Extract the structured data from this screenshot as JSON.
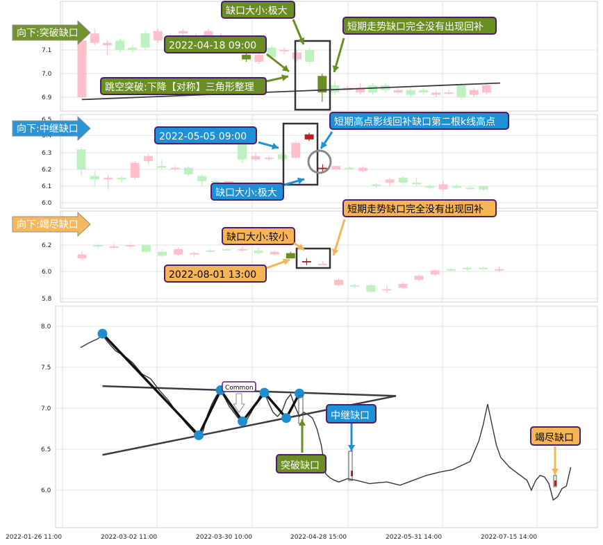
{
  "chart_data": [
    {
      "type": "candlestick",
      "panel": "gap-breakaway",
      "tag": "向下:突破缺口",
      "ylim": [
        6.85,
        7.25
      ],
      "yticks": [
        "7.1",
        "7.0",
        "6.9"
      ],
      "candles": [
        {
          "o": 7.14,
          "c": 6.9,
          "h": 7.18,
          "l": 6.89,
          "up": false
        },
        {
          "o": 7.17,
          "c": 7.13,
          "h": 7.19,
          "l": 7.12,
          "up": false
        },
        {
          "o": 7.13,
          "c": 7.12,
          "h": 7.14,
          "l": 7.08,
          "up": false
        },
        {
          "o": 7.1,
          "c": 7.14,
          "h": 7.15,
          "l": 7.09,
          "up": true
        },
        {
          "o": 7.11,
          "c": 7.1,
          "h": 7.12,
          "l": 7.09,
          "up": true
        },
        {
          "o": 7.11,
          "c": 7.17,
          "h": 7.18,
          "l": 7.1,
          "up": true
        },
        {
          "o": 7.18,
          "c": 7.14,
          "h": 7.19,
          "l": 7.13,
          "up": false
        },
        {
          "o": 7.16,
          "c": 7.15,
          "h": 7.17,
          "l": 7.14,
          "up": true
        },
        {
          "o": 7.17,
          "c": 7.18,
          "h": 7.19,
          "l": 7.16,
          "up": false
        },
        {
          "o": 7.16,
          "c": 7.16,
          "h": 7.17,
          "l": 7.15,
          "up": false
        },
        {
          "o": 7.18,
          "c": 7.16,
          "h": 7.19,
          "l": 7.15,
          "up": false
        },
        {
          "o": 7.16,
          "c": 7.15,
          "h": 7.17,
          "l": 7.14,
          "up": false
        },
        {
          "o": 7.14,
          "c": 7.1,
          "h": 7.15,
          "l": 7.09,
          "up": false
        },
        {
          "o": 7.06,
          "c": 7.08,
          "h": 7.1,
          "l": 7.05,
          "up": true
        },
        {
          "o": 7.08,
          "c": 7.05,
          "h": 7.1,
          "l": 7.04,
          "up": false
        },
        {
          "o": 7.07,
          "c": 7.11,
          "h": 7.12,
          "l": 7.06,
          "up": true
        },
        {
          "o": 7.1,
          "c": 7.1,
          "h": 7.11,
          "l": 7.08,
          "up": false
        },
        {
          "o": 7.09,
          "c": 7.06,
          "h": 7.1,
          "l": 7.05,
          "up": false
        },
        {
          "o": 7.05,
          "c": 7.1,
          "h": 7.11,
          "l": 7.04,
          "up": true
        },
        {
          "o": 6.92,
          "c": 6.99,
          "h": 7.0,
          "l": 6.88,
          "up": true
        },
        {
          "o": 6.92,
          "c": 6.95,
          "h": 6.97,
          "l": 6.91,
          "up": true
        },
        {
          "o": 6.94,
          "c": 6.93,
          "h": 6.95,
          "l": 6.92,
          "up": false
        },
        {
          "o": 6.92,
          "c": 6.94,
          "h": 6.96,
          "l": 6.91,
          "up": false
        },
        {
          "o": 6.92,
          "c": 6.95,
          "h": 6.96,
          "l": 6.91,
          "up": true
        },
        {
          "o": 6.95,
          "c": 6.93,
          "h": 6.96,
          "l": 6.92,
          "up": true
        },
        {
          "o": 6.93,
          "c": 6.92,
          "h": 6.94,
          "l": 6.91,
          "up": false
        },
        {
          "o": 6.91,
          "c": 6.93,
          "h": 6.94,
          "l": 6.9,
          "up": true
        },
        {
          "o": 6.92,
          "c": 6.93,
          "h": 6.94,
          "l": 6.91,
          "up": true
        },
        {
          "o": 6.91,
          "c": 6.92,
          "h": 6.93,
          "l": 6.9,
          "up": false
        },
        {
          "o": 6.92,
          "c": 6.92,
          "h": 6.93,
          "l": 6.91,
          "up": false
        },
        {
          "o": 6.9,
          "c": 6.95,
          "h": 6.96,
          "l": 6.89,
          "up": true
        },
        {
          "o": 6.93,
          "c": 6.91,
          "h": 6.94,
          "l": 6.9,
          "up": false
        },
        {
          "o": 6.95,
          "c": 6.92,
          "h": 6.96,
          "l": 6.91,
          "up": false
        }
      ],
      "gap_candles": [
        13,
        19
      ],
      "trendline": [
        [
          0,
          6.89
        ],
        [
          32,
          6.96
        ]
      ],
      "annotations": {
        "gap_size": "缺口大小:极大",
        "time": "2022-04-18 09:00",
        "pattern": "跳空突破:下降【对称】三角形整理",
        "fill": "短期走势缺口完全没有出现回补"
      }
    },
    {
      "type": "candlestick",
      "panel": "gap-runaway",
      "tag": "向下:中继缺口",
      "ylim": [
        5.98,
        6.52
      ],
      "yticks": [
        "6.5",
        "6.4",
        "6.3",
        "6.2",
        "6.1",
        "6.0"
      ],
      "candles": [
        {
          "o": 6.2,
          "c": 6.32,
          "h": 6.33,
          "l": 6.16,
          "up": true
        },
        {
          "o": 6.16,
          "c": 6.14,
          "h": 6.19,
          "l": 6.1,
          "up": true
        },
        {
          "o": 6.15,
          "c": 6.14,
          "h": 6.17,
          "l": 6.08,
          "up": false
        },
        {
          "o": 6.15,
          "c": 6.14,
          "h": 6.16,
          "l": 6.12,
          "up": true
        },
        {
          "o": 6.15,
          "c": 6.24,
          "h": 6.25,
          "l": 6.14,
          "up": false
        },
        {
          "o": 6.28,
          "c": 6.25,
          "h": 6.29,
          "l": 6.23,
          "up": false
        },
        {
          "o": 6.22,
          "c": 6.21,
          "h": 6.26,
          "l": 6.2,
          "up": true
        },
        {
          "o": 6.21,
          "c": 6.21,
          "h": 6.22,
          "l": 6.19,
          "up": false
        },
        {
          "o": 6.21,
          "c": 6.17,
          "h": 6.22,
          "l": 6.16,
          "up": true
        },
        {
          "o": 6.16,
          "c": 6.13,
          "h": 6.17,
          "l": 6.1,
          "up": true
        },
        {
          "o": 6.13,
          "c": 6.13,
          "h": 6.14,
          "l": 6.12,
          "up": true
        },
        {
          "o": 6.13,
          "c": 6.12,
          "h": 6.13,
          "l": 6.11,
          "up": false
        },
        {
          "o": 6.26,
          "c": 6.38,
          "h": 6.4,
          "l": 6.24,
          "up": true
        },
        {
          "o": 6.26,
          "c": 6.28,
          "h": 6.3,
          "l": 6.25,
          "up": false
        },
        {
          "o": 6.27,
          "c": 6.27,
          "h": 6.28,
          "l": 6.25,
          "up": false
        },
        {
          "o": 6.26,
          "c": 6.29,
          "h": 6.3,
          "l": 6.25,
          "up": true
        },
        {
          "o": 6.27,
          "c": 6.36,
          "h": 6.37,
          "l": 6.26,
          "up": false
        },
        {
          "o": 6.41,
          "c": 6.38,
          "h": 6.42,
          "l": 6.37,
          "up": false
        },
        {
          "o": 6.21,
          "c": 6.21,
          "h": 6.23,
          "l": 6.18,
          "up": false
        },
        {
          "o": 6.2,
          "c": 6.22,
          "h": 6.22,
          "l": 6.19,
          "up": false
        },
        {
          "o": 6.21,
          "c": 6.21,
          "h": 6.22,
          "l": 6.2,
          "up": true
        },
        {
          "o": 6.21,
          "c": 6.19,
          "h": 6.22,
          "l": 6.18,
          "up": false
        },
        {
          "o": 6.1,
          "c": 6.11,
          "h": 6.12,
          "l": 6.09,
          "up": true
        },
        {
          "o": 6.12,
          "c": 6.14,
          "h": 6.15,
          "l": 6.1,
          "up": false
        },
        {
          "o": 6.12,
          "c": 6.15,
          "h": 6.16,
          "l": 6.11,
          "up": true
        },
        {
          "o": 6.11,
          "c": 6.12,
          "h": 6.15,
          "l": 6.1,
          "up": true
        },
        {
          "o": 6.09,
          "c": 6.1,
          "h": 6.11,
          "l": 6.08,
          "up": true
        },
        {
          "o": 6.08,
          "c": 6.11,
          "h": 6.13,
          "l": 6.07,
          "up": false
        },
        {
          "o": 6.09,
          "c": 6.1,
          "h": 6.11,
          "l": 6.08,
          "up": true
        },
        {
          "o": 6.09,
          "c": 6.09,
          "h": 6.1,
          "l": 6.08,
          "up": true
        },
        {
          "o": 6.08,
          "c": 6.1,
          "h": 6.1,
          "l": 6.07,
          "up": true
        }
      ],
      "gap_candles": [
        17,
        18
      ],
      "annotations": {
        "time": "2022-05-05 09:00",
        "fill": "短期高点影线回补缺口第二根k线高点",
        "gap_size": "缺口大小:极大"
      }
    },
    {
      "type": "candlestick",
      "panel": "gap-exhaustion",
      "tag": "向下:竭尽缺口",
      "ylim": [
        5.78,
        6.32
      ],
      "yticks": [
        "6.2",
        "6.0",
        "5.8"
      ],
      "candles": [
        {
          "o": 6.13,
          "c": 6.1,
          "h": 6.15,
          "l": 6.09,
          "up": false
        },
        {
          "o": 6.2,
          "c": 6.19,
          "h": 6.21,
          "l": 6.18,
          "up": true
        },
        {
          "o": 6.19,
          "c": 6.19,
          "h": 6.21,
          "l": 6.18,
          "up": false
        },
        {
          "o": 6.2,
          "c": 6.19,
          "h": 6.21,
          "l": 6.18,
          "up": false
        },
        {
          "o": 6.2,
          "c": 6.15,
          "h": 6.21,
          "l": 6.14,
          "up": true
        },
        {
          "o": 6.15,
          "c": 6.12,
          "h": 6.17,
          "l": 6.11,
          "up": true
        },
        {
          "o": 6.17,
          "c": 6.13,
          "h": 6.18,
          "l": 6.12,
          "up": false
        },
        {
          "o": 6.14,
          "c": 6.13,
          "h": 6.15,
          "l": 6.11,
          "up": false
        },
        {
          "o": 6.16,
          "c": 6.15,
          "h": 6.17,
          "l": 6.14,
          "up": true
        },
        {
          "o": 6.17,
          "c": 6.17,
          "h": 6.18,
          "l": 6.16,
          "up": true
        },
        {
          "o": 6.17,
          "c": 6.16,
          "h": 6.19,
          "l": 6.15,
          "up": false
        },
        {
          "o": 6.16,
          "c": 6.14,
          "h": 6.18,
          "l": 6.13,
          "up": true
        },
        {
          "o": 6.15,
          "c": 6.13,
          "h": 6.16,
          "l": 6.12,
          "up": false
        },
        {
          "o": 6.14,
          "c": 6.1,
          "h": 6.15,
          "l": 6.1,
          "up": true
        },
        {
          "o": 6.08,
          "c": 6.07,
          "h": 6.1,
          "l": 6.05,
          "up": false
        },
        {
          "o": 6.06,
          "c": 6.06,
          "h": 6.08,
          "l": 6.05,
          "up": false
        },
        {
          "o": 5.9,
          "c": 5.94,
          "h": 5.95,
          "l": 5.89,
          "up": false
        },
        {
          "o": 5.9,
          "c": 5.89,
          "h": 5.91,
          "l": 5.88,
          "up": true
        },
        {
          "o": 5.85,
          "c": 5.9,
          "h": 5.91,
          "l": 5.84,
          "up": true
        },
        {
          "o": 5.86,
          "c": 5.87,
          "h": 5.9,
          "l": 5.84,
          "up": false
        },
        {
          "o": 5.88,
          "c": 5.91,
          "h": 5.92,
          "l": 5.87,
          "up": false
        },
        {
          "o": 5.94,
          "c": 5.97,
          "h": 5.98,
          "l": 5.93,
          "up": false
        },
        {
          "o": 5.98,
          "c": 6.01,
          "h": 6.02,
          "l": 5.97,
          "up": false
        },
        {
          "o": 6.01,
          "c": 6.02,
          "h": 6.03,
          "l": 6.0,
          "up": true
        },
        {
          "o": 6.02,
          "c": 6.03,
          "h": 6.04,
          "l": 6.01,
          "up": true
        },
        {
          "o": 6.02,
          "c": 6.03,
          "h": 6.04,
          "l": 6.01,
          "up": true
        },
        {
          "o": 6.02,
          "c": 6.02,
          "h": 6.04,
          "l": 6.0,
          "up": false
        }
      ],
      "gap_candles": [
        13,
        14
      ],
      "annotations": {
        "gap_size": "缺口大小:较小",
        "time": "2022-08-01 13:00",
        "fill": "短期走势缺口完全没有出现回补"
      }
    },
    {
      "type": "line",
      "panel": "overview",
      "ylim": [
        5.55,
        8.25
      ],
      "yticks": [
        "8.0",
        "7.5",
        "7.0",
        "6.5",
        "6.0"
      ],
      "x_ticks": [
        "2022-01-26 11:00",
        "2022-03-02 11:00",
        "2022-03-30 10:00",
        "2022-04-28 15:00",
        "2022-05-31 14:00",
        "2022-07-15 14:00"
      ],
      "price": [
        [
          0,
          7.74
        ],
        [
          2,
          7.8
        ],
        [
          4,
          7.85
        ],
        [
          5,
          7.9
        ],
        [
          6,
          7.82
        ],
        [
          8,
          7.7
        ],
        [
          10,
          7.64
        ],
        [
          12,
          7.55
        ],
        [
          14,
          7.42
        ],
        [
          16,
          7.36
        ],
        [
          18,
          7.22
        ],
        [
          20,
          7.1
        ],
        [
          22,
          6.95
        ],
        [
          24,
          6.82
        ],
        [
          26,
          6.7
        ],
        [
          27,
          6.66
        ],
        [
          28,
          6.72
        ],
        [
          29,
          6.92
        ],
        [
          30,
          7.05
        ],
        [
          31,
          7.15
        ],
        [
          32,
          7.22
        ],
        [
          33,
          7.12
        ],
        [
          34,
          7.02
        ],
        [
          35,
          6.95
        ],
        [
          36,
          6.88
        ],
        [
          37,
          6.84
        ],
        [
          38,
          6.86
        ],
        [
          39,
          6.95
        ],
        [
          40,
          7.05
        ],
        [
          41,
          7.15
        ],
        [
          42,
          7.19
        ],
        [
          43,
          7.06
        ],
        [
          44,
          6.95
        ],
        [
          45,
          6.9
        ],
        [
          46,
          6.96
        ],
        [
          47,
          7.1
        ],
        [
          48,
          7.17
        ],
        [
          49,
          7.02
        ],
        [
          50,
          6.9
        ],
        [
          51,
          6.95
        ],
        [
          52,
          6.92
        ],
        [
          53,
          6.88
        ],
        [
          54,
          6.75
        ],
        [
          55,
          6.55
        ],
        [
          56,
          6.2
        ],
        [
          57,
          6.15
        ],
        [
          58,
          6.12
        ],
        [
          59,
          6.1
        ],
        [
          61,
          6.14
        ],
        [
          63,
          6.12
        ],
        [
          66,
          6.08
        ],
        [
          70,
          6.1
        ],
        [
          73,
          6.06
        ],
        [
          76,
          6.12
        ],
        [
          79,
          6.18
        ],
        [
          82,
          6.22
        ],
        [
          85,
          6.25
        ],
        [
          87,
          6.3
        ],
        [
          89,
          6.35
        ],
        [
          91,
          6.6
        ],
        [
          92,
          6.8
        ],
        [
          93,
          7.05
        ],
        [
          94,
          6.8
        ],
        [
          95,
          6.55
        ],
        [
          96,
          6.4
        ],
        [
          98,
          6.28
        ],
        [
          100,
          6.2
        ],
        [
          102,
          6.12
        ],
        [
          103,
          6.0
        ],
        [
          104,
          6.12
        ],
        [
          105,
          6.18
        ],
        [
          106,
          6.16
        ],
        [
          107,
          6.08
        ],
        [
          108,
          5.88
        ],
        [
          109,
          5.92
        ],
        [
          110,
          6.02
        ],
        [
          111,
          6.05
        ],
        [
          112,
          6.28
        ]
      ],
      "pivots": [
        [
          5,
          7.91
        ],
        [
          27,
          6.67
        ],
        [
          32,
          7.22
        ],
        [
          37,
          6.84
        ],
        [
          42,
          7.19
        ],
        [
          47,
          6.88
        ],
        [
          50,
          7.18
        ]
      ],
      "triangle": {
        "upper": [
          [
            5,
            7.27
          ],
          [
            64,
            7.15
          ]
        ],
        "lower": [
          [
            5,
            6.43
          ],
          [
            64,
            7.15
          ]
        ]
      },
      "markers": {
        "breakaway": "突破缺口",
        "runaway": "中继缺口",
        "exhaustion": "竭尽缺口",
        "common": "Common"
      }
    }
  ]
}
